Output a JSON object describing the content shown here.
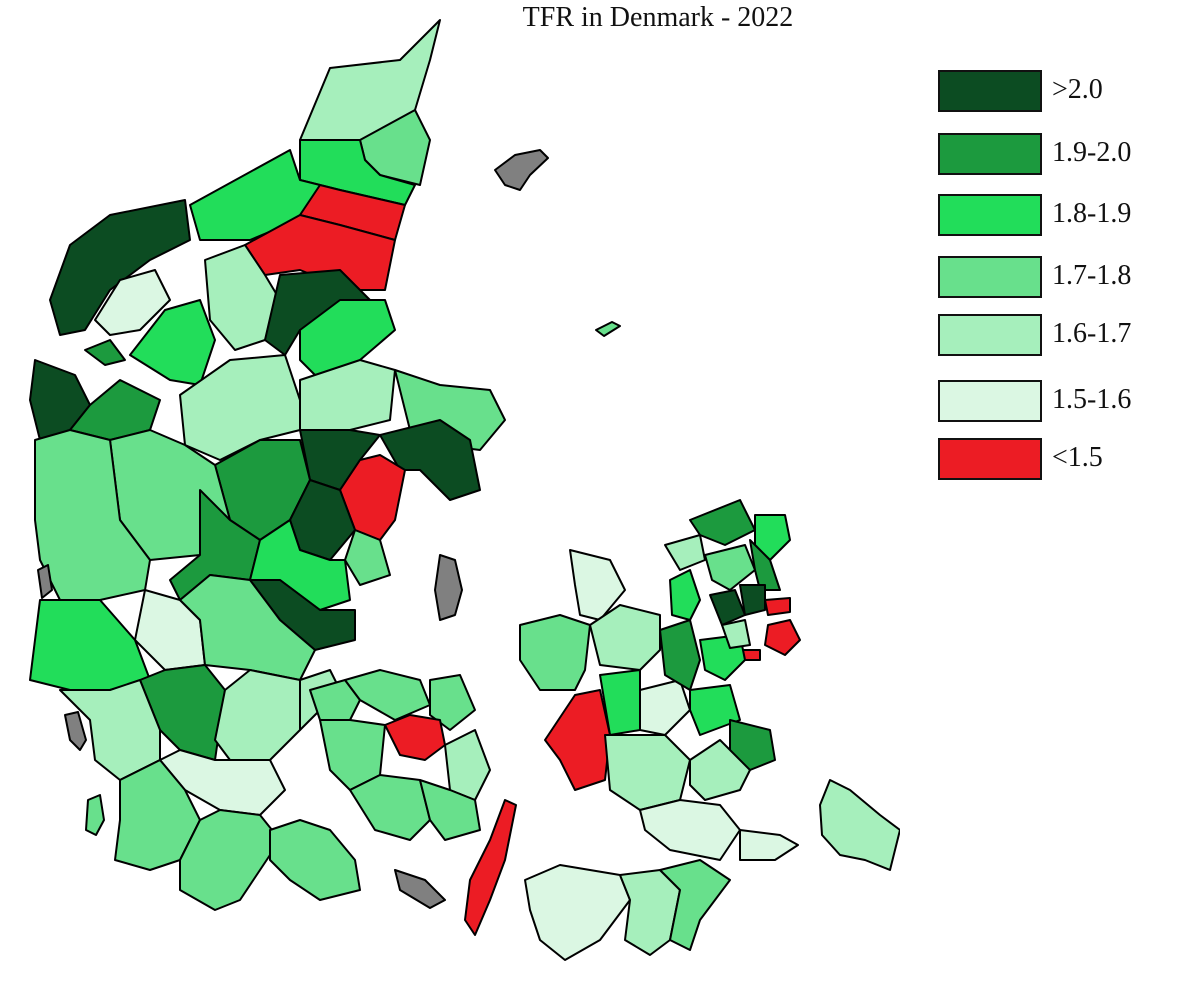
{
  "title": "TFR in Denmark - 2022",
  "colors": {
    "gt_2_0": "#0c4c22",
    "r_1_9_2_0": "#1c9a3e",
    "r_1_8_1_9": "#22dd5a",
    "r_1_7_1_8": "#68e08c",
    "r_1_6_1_7": "#a6efbc",
    "r_1_5_1_6": "#dbf7e3",
    "lt_1_5": "#ec1c24",
    "no_data": "#808080"
  },
  "legend": [
    {
      "label": ">2.0",
      "color": "#0c4c22"
    },
    {
      "label": "1.9-2.0",
      "color": "#1c9a3e"
    },
    {
      "label": "1.8-1.9",
      "color": "#22dd5a"
    },
    {
      "label": "1.7-1.8",
      "color": "#68e08c"
    },
    {
      "label": "1.6-1.7",
      "color": "#a6efbc"
    },
    {
      "label": "1.5-1.6",
      "color": "#dbf7e3"
    },
    {
      "label": "<1.5",
      "color": "#ec1c24"
    }
  ]
}
